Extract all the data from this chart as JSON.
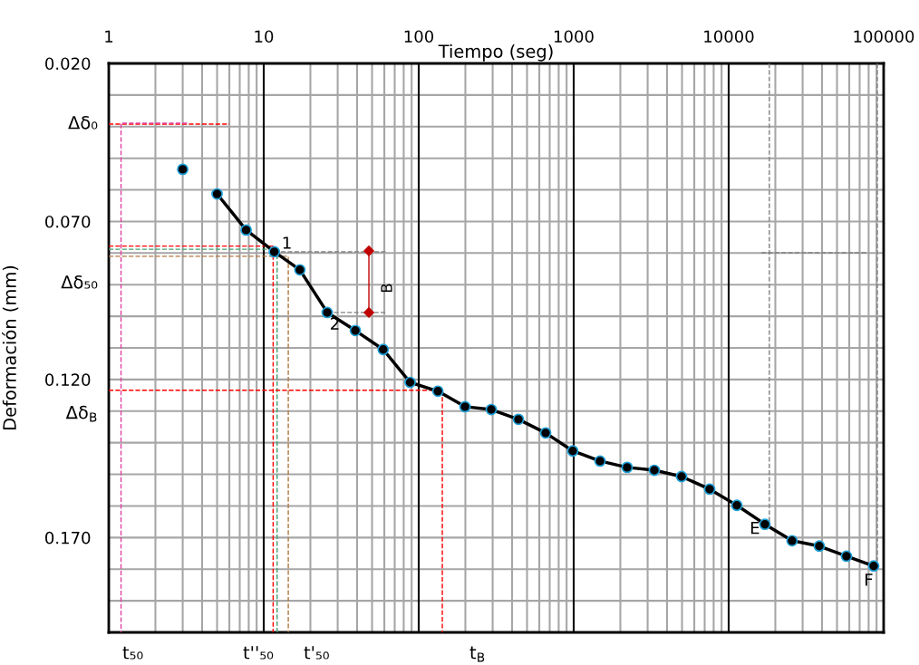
{
  "chart_data": {
    "type": "line",
    "xlabel": "Tiempo (seg)",
    "ylabel": "Deformación (mm)",
    "log": "x",
    "xlim": [
      1,
      100000
    ],
    "xticks": [
      1,
      10,
      100,
      1000,
      10000,
      100000
    ],
    "ylim": [
      0.2,
      0.02
    ],
    "yticks": [
      {
        "value": 0.02,
        "label": "0.020"
      },
      {
        "value": 0.07,
        "label": "0.070"
      },
      {
        "value": 0.12,
        "label": "0.120"
      },
      {
        "value": 0.17,
        "label": "0.170"
      }
    ],
    "grid": true,
    "series": [
      {
        "type": "scatter",
        "color": "#000000",
        "marker": "circle",
        "x": [
          3.0
        ],
        "values": [
          0.0535
        ]
      },
      {
        "color": "#000000",
        "marker": "circle",
        "line_style": "solid",
        "x": [
          5.0,
          7.7,
          11.7,
          17.1,
          25.7,
          39,
          59,
          88,
          133,
          199,
          294,
          440,
          659,
          986,
          1479,
          2213,
          3314,
          4966,
          7536,
          11290,
          17140,
          25650,
          38450,
          57560,
          86220
        ],
        "values": [
          0.0613,
          0.0727,
          0.0796,
          0.0853,
          0.0988,
          0.1045,
          0.1105,
          0.1209,
          0.1237,
          0.1286,
          0.1295,
          0.1326,
          0.1369,
          0.1426,
          0.1458,
          0.1478,
          0.1487,
          0.1507,
          0.1547,
          0.1598,
          0.1658,
          0.171,
          0.1727,
          0.1759,
          0.179
        ]
      },
      {
        "type": "line",
        "color": "#ff0000",
        "marker": "none",
        "line_style": "dashed",
        "x": [
          1,
          6.0
        ],
        "values": [
          0.0392,
          0.0392
        ]
      },
      {
        "type": "line",
        "color": "#e040a0",
        "marker": "none",
        "line_style": "dashed",
        "x": [
          3.2,
          1.2,
          1.2
        ],
        "values": [
          0.0389,
          0.0389,
          0.2
        ]
      },
      {
        "type": "line",
        "color": "#ff0000",
        "marker": "none",
        "line_style": "dashed",
        "x": [
          1,
          11.5,
          11.5
        ],
        "values": [
          0.0778,
          0.0778,
          0.2
        ]
      },
      {
        "type": "line",
        "color": "#40a070",
        "marker": "none",
        "line_style": "dashed",
        "x": [
          1,
          12.2,
          12.2
        ],
        "values": [
          0.0788,
          0.0788,
          0.2
        ]
      },
      {
        "type": "line",
        "color": "#b07840",
        "marker": "none",
        "line_style": "dashed",
        "x": [
          1,
          14.4,
          14.4
        ],
        "values": [
          0.081,
          0.081,
          0.2
        ]
      },
      {
        "type": "line",
        "color": "#ff0000",
        "marker": "none",
        "line_style": "dashed",
        "x": [
          1,
          142,
          142
        ],
        "values": [
          0.1234,
          0.1234,
          0.2
        ]
      },
      {
        "type": "line",
        "color": "#808080",
        "marker": "none",
        "line_style": "dashed",
        "x": [
          11.7,
          61
        ],
        "values": [
          0.0796,
          0.0796
        ]
      },
      {
        "type": "line",
        "color": "#808080",
        "marker": "none",
        "line_style": "dashed",
        "x": [
          25.7,
          61
        ],
        "values": [
          0.0988,
          0.0988
        ]
      },
      {
        "type": "line",
        "color": "#808080",
        "marker": "none",
        "line_style": "dashed",
        "x": [
          18300,
          18300
        ],
        "values": [
          0.02,
          0.1658
        ]
      },
      {
        "type": "line",
        "color": "#808080",
        "marker": "none",
        "line_style": "dashed",
        "x": [
          91000,
          91000
        ],
        "values": [
          0.02,
          0.1775
        ]
      },
      {
        "type": "line",
        "color": "#808080",
        "marker": "none",
        "line_style": "dashed",
        "x": [
          16250,
          78500
        ],
        "values": [
          0.0799,
          0.0799
        ]
      },
      {
        "type": "line",
        "color": "#c00000",
        "marker": "diamond",
        "line_style": "solid",
        "x": [
          47.7,
          47.7
        ],
        "values": [
          0.0793,
          0.0988
        ]
      }
    ],
    "annotations": [
      "Δδ₀",
      "Δδ₅₀",
      "Δδ$_{B}$",
      "t₅₀",
      "t''₅₀",
      "t'₅₀",
      "t$_{B}$",
      "B",
      {
        "text": "1",
        "x": 11.7,
        "y": 0.0796
      },
      {
        "text": "2",
        "x": 25.7,
        "y": 0.0988
      },
      {
        "text": "E",
        "x": 17140,
        "y": 0.1658
      },
      {
        "text": "F",
        "x": 86220,
        "y": 0.179
      }
    ]
  }
}
